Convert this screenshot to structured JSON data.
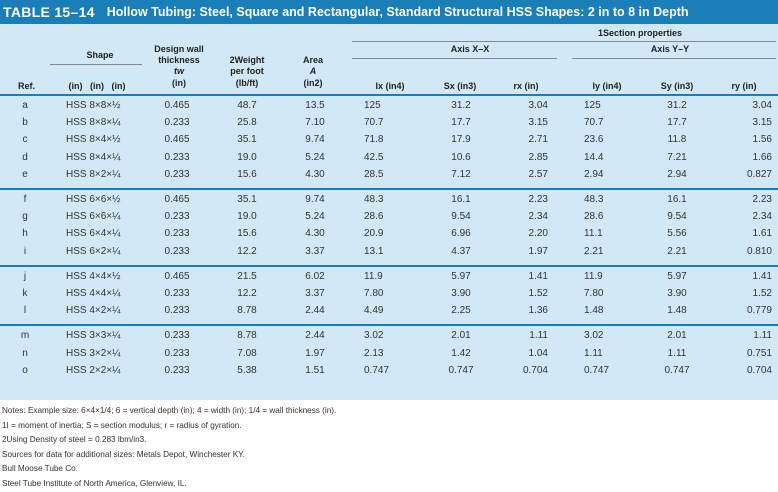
{
  "title": {
    "number": "TABLE 15–14",
    "text": "Hollow Tubing: Steel, Square and Rectangular, Standard Structural HSS Shapes: 2 in to 8 in Depth"
  },
  "headers": {
    "section_properties": "1Section properties",
    "axis_xx": "Axis X–X",
    "axis_yy": "Axis Y–Y",
    "ref": "Ref.",
    "shape": "Shape",
    "shape_sub": "(in)   (in)   (in)",
    "design_wall": "Design wall",
    "thickness": "thickness",
    "tw": "tw",
    "tw_unit": "(in)",
    "weight_1": "2Weight",
    "weight_2": "per foot",
    "weight_3": "(lb/ft)",
    "area_1": "Area",
    "area_2": "A",
    "area_3": "(in2)",
    "ix": "Ix (in4)",
    "sx": "Sx (in3)",
    "rx": "rx (in)",
    "iy": "Iy (in4)",
    "sy": "Sy (in3)",
    "ry": "ry (in)"
  },
  "groups": [
    [
      {
        "ref": "a",
        "shape": "HSS 8×8×½",
        "tw": "0.465",
        "wt": "48.7",
        "area": "13.5",
        "ix": "125",
        "sx": "31.2",
        "rx": "3.04",
        "iy": "125",
        "sy": "31.2",
        "ry": "3.04"
      },
      {
        "ref": "b",
        "shape": "HSS 8×8×¼",
        "tw": "0.233",
        "wt": "25.8",
        "area": "7.10",
        "ix": "70.7",
        "sx": "17.7",
        "rx": "3.15",
        "iy": "70.7",
        "sy": "17.7",
        "ry": "3.15"
      },
      {
        "ref": "c",
        "shape": "HSS 8×4×½",
        "tw": "0.465",
        "wt": "35.1",
        "area": "9.74",
        "ix": "71.8",
        "sx": "17.9",
        "rx": "2.71",
        "iy": "23.6",
        "sy": "11.8",
        "ry": "1.56"
      },
      {
        "ref": "d",
        "shape": "HSS 8×4×¼",
        "tw": "0.233",
        "wt": "19.0",
        "area": "5.24",
        "ix": "42.5",
        "sx": "10.6",
        "rx": "2.85",
        "iy": "14.4",
        "sy": "7.21",
        "ry": "1.66"
      },
      {
        "ref": "e",
        "shape": "HSS 8×2×¼",
        "tw": "0.233",
        "wt": "15.6",
        "area": "4.30",
        "ix": "28.5",
        "sx": "7.12",
        "rx": "2.57",
        "iy": "2.94",
        "sy": "2.94",
        "ry": "0.827"
      }
    ],
    [
      {
        "ref": "f",
        "shape": "HSS 6×6×½",
        "tw": "0.465",
        "wt": "35.1",
        "area": "9.74",
        "ix": "48.3",
        "sx": "16.1",
        "rx": "2.23",
        "iy": "48.3",
        "sy": "16.1",
        "ry": "2.23"
      },
      {
        "ref": "g",
        "shape": "HSS 6×6×¼",
        "tw": "0.233",
        "wt": "19.0",
        "area": "5.24",
        "ix": "28.6",
        "sx": "9.54",
        "rx": "2.34",
        "iy": "28.6",
        "sy": "9.54",
        "ry": "2.34"
      },
      {
        "ref": "h",
        "shape": "HSS 6×4×¼",
        "tw": "0.233",
        "wt": "15.6",
        "area": "4.30",
        "ix": "20.9",
        "sx": "6.96",
        "rx": "2.20",
        "iy": "11.1",
        "sy": "5.56",
        "ry": "1.61"
      },
      {
        "ref": "i",
        "shape": "HSS 6×2×¼",
        "tw": "0.233",
        "wt": "12.2",
        "area": "3.37",
        "ix": "13.1",
        "sx": "4.37",
        "rx": "1.97",
        "iy": "2.21",
        "sy": "2.21",
        "ry": "0.810"
      }
    ],
    [
      {
        "ref": "j",
        "shape": "HSS 4×4×½",
        "tw": "0.465",
        "wt": "21.5",
        "area": "6.02",
        "ix": "11.9",
        "sx": "5.97",
        "rx": "1.41",
        "iy": "11.9",
        "sy": "5.97",
        "ry": "1.41"
      },
      {
        "ref": "k",
        "shape": "HSS 4×4×¼",
        "tw": "0.233",
        "wt": "12.2",
        "area": "3.37",
        "ix": "7.80",
        "sx": "3.90",
        "rx": "1.52",
        "iy": "7.80",
        "sy": "3.90",
        "ry": "1.52"
      },
      {
        "ref": "l",
        "shape": "HSS 4×2×¼",
        "tw": "0.233",
        "wt": "8.78",
        "area": "2.44",
        "ix": "4.49",
        "sx": "2.25",
        "rx": "1.36",
        "iy": "1.48",
        "sy": "1.48",
        "ry": "0.779"
      }
    ],
    [
      {
        "ref": "m",
        "shape": "HSS 3×3×¼",
        "tw": "0.233",
        "wt": "8.78",
        "area": "2.44",
        "ix": "3.02",
        "sx": "2.01",
        "rx": "1.11",
        "iy": "3.02",
        "sy": "2.01",
        "ry": "1.11"
      },
      {
        "ref": "n",
        "shape": "HSS 3×2×¼",
        "tw": "0.233",
        "wt": "7.08",
        "area": "1.97",
        "ix": "2.13",
        "sx": "1.42",
        "rx": "1.04",
        "iy": "1.11",
        "sy": "1.11",
        "ry": "0.751"
      },
      {
        "ref": "o",
        "shape": "HSS 2×2×¼",
        "tw": "0.233",
        "wt": "5.38",
        "area": "1.51",
        "ix": "0.747",
        "sx": "0.747",
        "rx": "0.704",
        "iy": "0.747",
        "sy": "0.747",
        "ry": "0.704"
      }
    ]
  ],
  "notes": [
    "Notes: Example size: 6×4×1/4; 6 = vertical depth (in); 4 = width (in); 1/4 = wall thickness (in).",
    "1I = moment of inertia; S = section modulus; r = radius of gyration.",
    "2Using Density of steel = 0.283 lbm/in3.",
    "Sources for data for additional sizes: Metals Depot, Winchester KY.",
    "Bull Moose Tube Co.",
    "Steel Tube Institute of North America, Glenview, IL."
  ],
  "colors": {
    "title_bar": "#1a7fb8",
    "table_bg": "#d3e8f6"
  }
}
